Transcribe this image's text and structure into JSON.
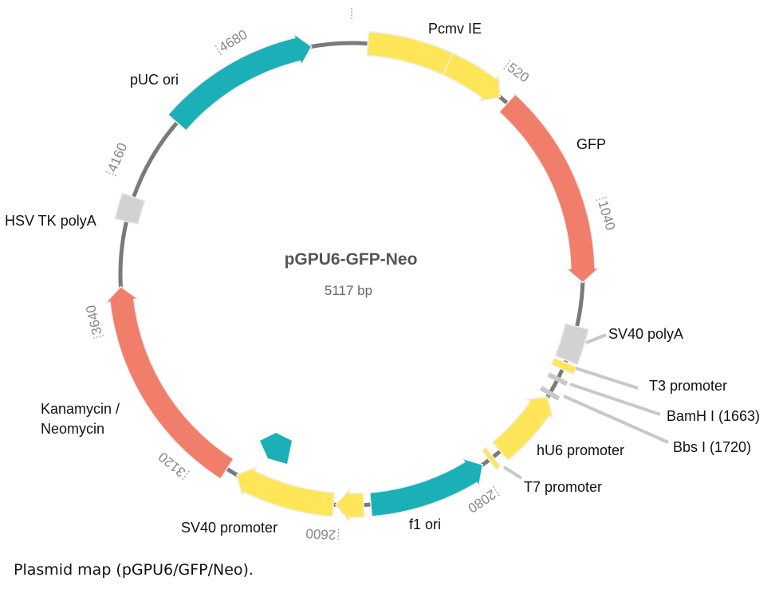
{
  "plasmid": {
    "name": "pGPU6-GFP-Neo",
    "size_label": "5117 bp",
    "total_bp": 5117
  },
  "colors": {
    "backbone": "#7a7a7a",
    "yellow": "#ffe658",
    "salmon": "#f07e6b",
    "teal": "#1bb0b8",
    "gray": "#d2d2d2",
    "tick_text": "#888888"
  },
  "features": [
    {
      "name": "Pcmv IE",
      "start": 57,
      "end": 350,
      "dir": 0,
      "color": "yellow"
    },
    {
      "name": "Pcmv IE",
      "start": 350,
      "end": 568,
      "dir": 1,
      "color": "yellow"
    },
    {
      "name": "GFP",
      "start": 601,
      "end": 1309,
      "dir": 1,
      "color": "salmon"
    },
    {
      "name": "SV40 polyA",
      "start": 1465,
      "end": 1590,
      "dir": 0,
      "color": "gray"
    },
    {
      "name": "T3 promoter",
      "start": 1598,
      "end": 1625,
      "dir": 0,
      "color": "yellow"
    },
    {
      "name": "hU6 promoter",
      "start": 1735,
      "end": 1990,
      "dir": -1,
      "color": "yellow"
    },
    {
      "name": "T7 promoter",
      "start": 2022,
      "end": 2040,
      "dir": 0,
      "color": "yellow"
    },
    {
      "name": "f1 ori",
      "start": 2068,
      "end": 2491,
      "dir": -1,
      "color": "teal"
    },
    {
      "name": "",
      "start": 2516,
      "end": 2615,
      "dir": 1,
      "color": "yellow"
    },
    {
      "name": "SV40 promoter",
      "start": 2623,
      "end": 2982,
      "dir": 1,
      "color": "yellow"
    },
    {
      "name": "Kanamycin / Neomycin",
      "start": 3022,
      "end": 3794,
      "dir": 1,
      "color": "salmon"
    },
    {
      "name": "HSV TK polyA",
      "start": 4025,
      "end": 4115,
      "dir": 0,
      "color": "gray"
    },
    {
      "name": "pUC ori",
      "start": 4420,
      "end": 4975,
      "dir": 1,
      "color": "teal"
    }
  ],
  "sites": [
    {
      "name": "BamH I",
      "position": 1663
    },
    {
      "name": "Bbs I",
      "position": 1720
    }
  ],
  "ticks": [
    0,
    520,
    1040,
    2080,
    2600,
    3120,
    3640,
    4160,
    4680
  ],
  "tick_labels": [
    "",
    "520",
    "1040",
    "2080",
    "2600",
    "3120",
    "3640",
    "4160",
    "4680"
  ],
  "labels": {
    "pcmv": "Pcmv IE",
    "gfp": "GFP",
    "sv40_polya": "SV40 polyA",
    "t3": "T3 promoter",
    "bamh": "BamH I (1663)",
    "bbs": "Bbs I (1720)",
    "hu6": "hU6 promoter",
    "t7": "T7 promoter",
    "f1": "f1 ori",
    "sv40_prom": "SV40 promoter",
    "kan1": "Kanamycin /",
    "kan2": "Neomycin",
    "hsv": "HSV TK polyA",
    "puc": "pUC ori"
  },
  "caption": "Plasmid map (pGPU6/GFP/Neo)."
}
